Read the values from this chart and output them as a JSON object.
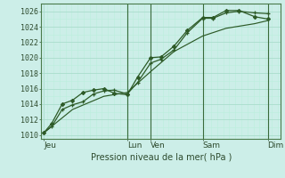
{
  "bg_color": "#cceee8",
  "grid_major_color": "#aaddcc",
  "grid_minor_color": "#bbeedc",
  "line_color": "#2d5a27",
  "marker_color": "#2d5a27",
  "xlabel_text": "Pression niveau de la mer( hPa )",
  "ylim": [
    1009.5,
    1027.0
  ],
  "xlim": [
    0,
    9.2
  ],
  "yticks": [
    1010,
    1012,
    1014,
    1016,
    1018,
    1020,
    1022,
    1024,
    1026
  ],
  "day_labels": [
    "Jeu",
    "Lun",
    "Ven",
    "Sam",
    "Dim"
  ],
  "day_positions": [
    0.1,
    3.3,
    4.2,
    6.2,
    8.7
  ],
  "vline_positions": [
    3.3,
    4.2,
    6.2,
    8.7
  ],
  "line1_x": [
    0.1,
    0.4,
    0.8,
    1.2,
    1.6,
    2.0,
    2.4,
    2.8,
    3.3,
    3.7,
    4.2,
    4.6,
    5.1,
    5.6,
    6.2,
    6.6,
    7.1,
    7.6,
    8.2,
    8.7
  ],
  "line1_y": [
    1010.3,
    1011.1,
    1013.3,
    1013.9,
    1014.3,
    1015.3,
    1015.7,
    1015.8,
    1015.3,
    1016.8,
    1019.3,
    1019.8,
    1021.0,
    1023.2,
    1025.1,
    1025.1,
    1025.8,
    1026.0,
    1025.8,
    1025.7
  ],
  "line2_x": [
    0.1,
    0.4,
    0.8,
    1.2,
    1.6,
    2.0,
    2.4,
    2.8,
    3.3,
    3.7,
    4.2,
    4.6,
    5.1,
    5.6,
    6.2,
    6.6,
    7.1,
    7.6,
    8.2,
    8.7
  ],
  "line2_y": [
    1010.3,
    1011.5,
    1014.0,
    1014.5,
    1015.5,
    1015.8,
    1016.0,
    1015.4,
    1015.2,
    1017.5,
    1020.0,
    1020.1,
    1021.5,
    1023.5,
    1025.2,
    1025.2,
    1026.1,
    1026.1,
    1025.3,
    1025.0
  ],
  "line3_x": [
    0.1,
    1.2,
    2.4,
    3.3,
    4.2,
    5.1,
    6.2,
    7.1,
    8.2,
    8.7
  ],
  "line3_y": [
    1010.3,
    1013.3,
    1015.0,
    1015.5,
    1018.2,
    1020.8,
    1022.8,
    1023.8,
    1024.4,
    1024.8
  ],
  "figsize": [
    3.2,
    2.0
  ],
  "dpi": 100
}
